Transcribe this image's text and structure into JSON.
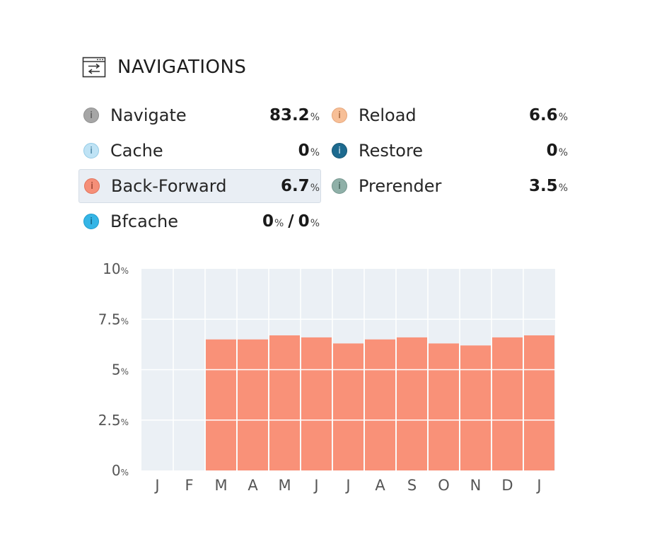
{
  "header": {
    "title": "NAVIGATIONS",
    "icon": "navigation-window-icon"
  },
  "metrics": [
    {
      "key": "navigate",
      "label": "Navigate",
      "value": "83.2",
      "unit": "%",
      "dot_color": "#a6a6a6",
      "dot_text_color": "#444444"
    },
    {
      "key": "reload",
      "label": "Reload",
      "value": "6.6",
      "unit": "%",
      "dot_color": "#f7bf97",
      "dot_text_color": "#8a4a22"
    },
    {
      "key": "cache",
      "label": "Cache",
      "value": "0",
      "unit": "%",
      "dot_color": "#bfe3f5",
      "dot_text_color": "#2c6d8c"
    },
    {
      "key": "restore",
      "label": "Restore",
      "value": "0",
      "unit": "%",
      "dot_color": "#1d6a8f",
      "dot_text_color": "#e8f3f8"
    },
    {
      "key": "back_forward",
      "label": "Back-Forward",
      "value": "6.7",
      "unit": "%",
      "dot_color": "#f58f78",
      "dot_text_color": "#7a2a18",
      "selected": true
    },
    {
      "key": "prerender",
      "label": "Prerender",
      "value": "3.5",
      "unit": "%",
      "dot_color": "#8fb0a8",
      "dot_text_color": "#2f4d46"
    },
    {
      "key": "bfcache",
      "label": "Bfcache",
      "value": "0",
      "unit": "%",
      "value2": "0",
      "unit2": "%",
      "separator": "/",
      "dot_color": "#35b5e6",
      "dot_text_color": "#0d4a63"
    }
  ],
  "info_glyph": "i",
  "chart_data": {
    "type": "bar",
    "series": [
      {
        "values": [
          0,
          0,
          6.5,
          6.5,
          6.7,
          6.6,
          6.3,
          6.5,
          6.6,
          6.3,
          6.2,
          6.6,
          6.7
        ]
      }
    ],
    "categories": [
      "J",
      "F",
      "M",
      "A",
      "M",
      "J",
      "J",
      "A",
      "S",
      "O",
      "N",
      "D",
      "J"
    ],
    "ylim": [
      0,
      10
    ],
    "yticks": [
      {
        "value": 0,
        "label": "0"
      },
      {
        "value": 2.5,
        "label": "2.5"
      },
      {
        "value": 5,
        "label": "5"
      },
      {
        "value": 7.5,
        "label": "7.5"
      },
      {
        "value": 10,
        "label": "10"
      }
    ],
    "ytick_unit": "%",
    "grid": true,
    "bar_color": "#f99178",
    "plot_bg": "#ebf0f5"
  }
}
